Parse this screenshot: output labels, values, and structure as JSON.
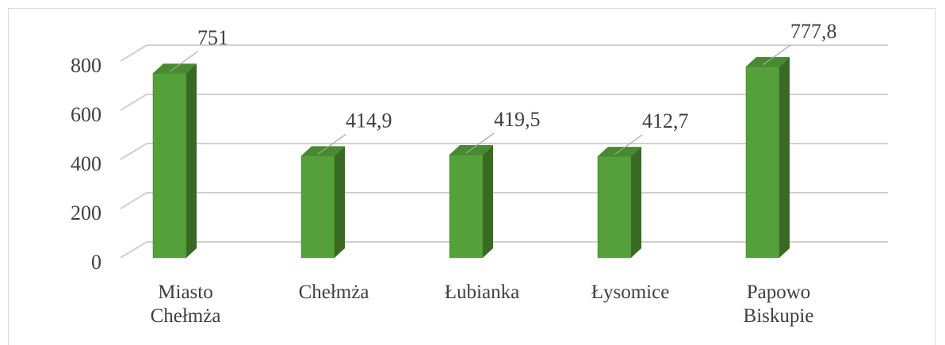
{
  "chart_data": {
    "type": "bar",
    "categories": [
      "Miasto Chełmża",
      "Chełmża",
      "Łubianka",
      "Łysomice",
      "Papowo Biskupie"
    ],
    "values": [
      751,
      414.9,
      419.5,
      412.7,
      777.8
    ],
    "value_labels": [
      "751",
      "414,9",
      "419,5",
      "412,7",
      "777,8"
    ],
    "color": "#55a03a",
    "ylim": [
      0,
      800
    ],
    "yticks": [
      0,
      200,
      400,
      600,
      800
    ],
    "grid": true
  }
}
